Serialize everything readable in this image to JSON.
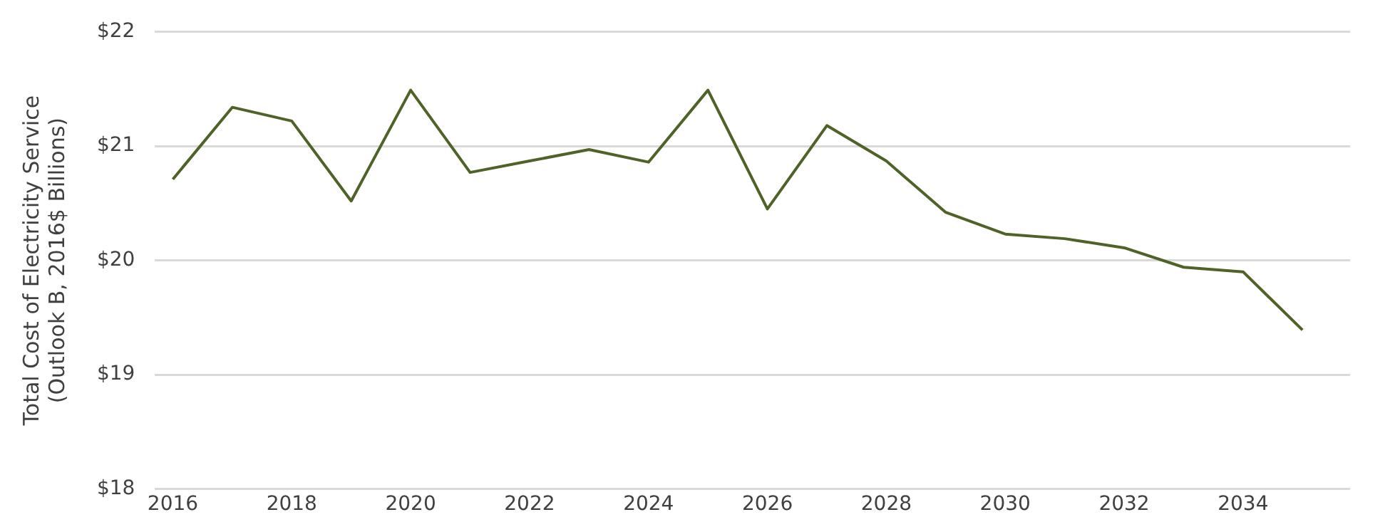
{
  "chart_data": {
    "type": "line",
    "ylabel": "Total Cost of Electricity Service\n(Outlook B, 2016$ Billions)",
    "x": [
      2016,
      2017,
      2018,
      2019,
      2020,
      2021,
      2022,
      2023,
      2024,
      2025,
      2026,
      2027,
      2028,
      2029,
      2030,
      2031,
      2032,
      2033,
      2034,
      2035
    ],
    "series": [
      {
        "color": "#4f6228",
        "values": [
          20.71,
          21.34,
          21.22,
          20.52,
          21.49,
          20.77,
          20.87,
          20.97,
          20.86,
          21.49,
          20.45,
          21.18,
          20.87,
          20.42,
          20.23,
          20.19,
          20.11,
          19.94,
          19.9,
          19.39
        ]
      }
    ],
    "xlim": [
      2015.7,
      2035.8
    ],
    "xticks": [
      2016,
      2018,
      2020,
      2022,
      2024,
      2026,
      2028,
      2030,
      2032,
      2034
    ],
    "ylim": [
      18,
      22
    ],
    "yticks": [
      {
        "value": 18,
        "label": "$18"
      },
      {
        "value": 19,
        "label": "$19"
      },
      {
        "value": 20,
        "label": "$20"
      },
      {
        "value": 21,
        "label": "$21"
      },
      {
        "value": 22,
        "label": "$22"
      }
    ],
    "grid": "y",
    "legend": false,
    "marker": "none",
    "line_style": "solid"
  }
}
